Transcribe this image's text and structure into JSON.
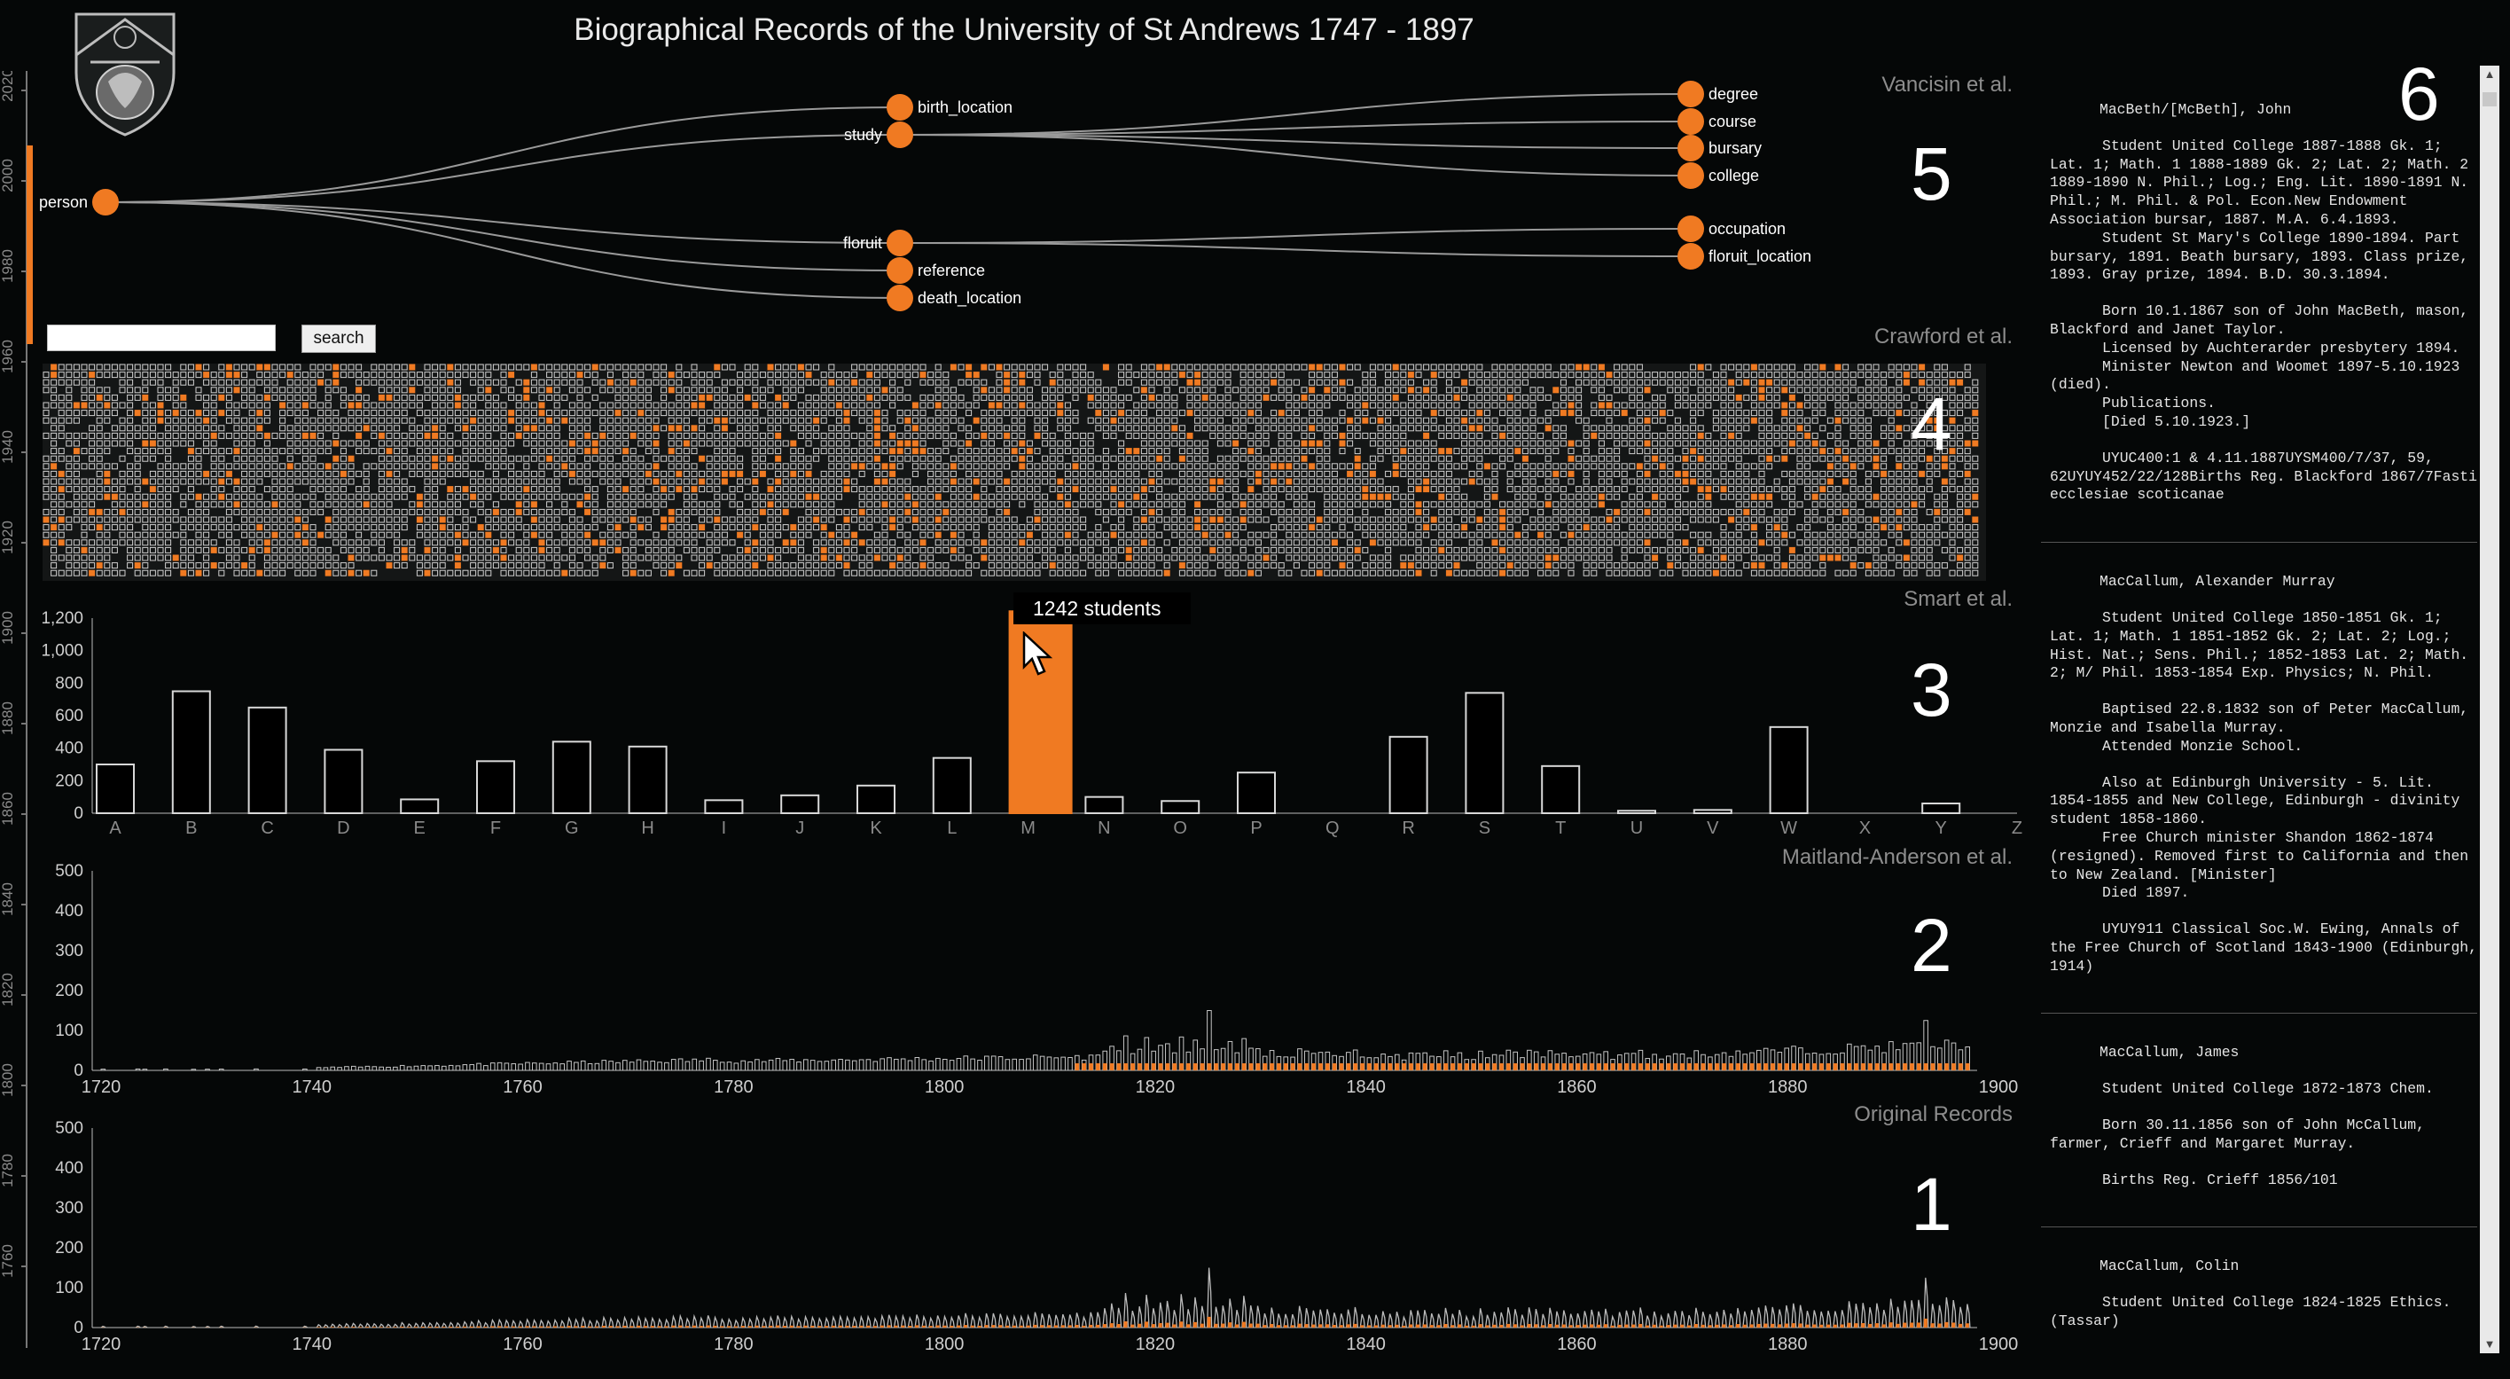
{
  "title": "Biographical Records of the University of St Andrews 1747 - 1897",
  "colors": {
    "accent": "#f07a22",
    "background": "#050707",
    "text": "#e6e6e6",
    "muted": "#8d8d8d"
  },
  "icons": {
    "crest": "university-crest-icon",
    "cursor": "mouse-cursor-icon"
  },
  "timeline": {
    "ticks": [
      "2020",
      "2000",
      "1980",
      "1960",
      "1940",
      "1920",
      "1900",
      "1880",
      "1860",
      "1840",
      "1820",
      "1800",
      "1780",
      "1760"
    ]
  },
  "panels": [
    {
      "number": "5",
      "label": "Vancisin et al."
    },
    {
      "number": "4",
      "label": "Crawford et al."
    },
    {
      "number": "3",
      "label": "Smart et al."
    },
    {
      "number": "2",
      "label": "Maitland-Anderson et al."
    },
    {
      "number": "1",
      "label": "Original Records"
    },
    {
      "number": "6",
      "label": ""
    }
  ],
  "tree": {
    "root": "person",
    "children": [
      {
        "label": "birth_location",
        "children": []
      },
      {
        "label": "study",
        "children": [
          "degree",
          "course",
          "bursary",
          "college"
        ]
      },
      {
        "label": "floruit",
        "children": [
          "occupation",
          "floruit_location"
        ]
      },
      {
        "label": "reference",
        "children": []
      },
      {
        "label": "death_location",
        "children": []
      }
    ]
  },
  "search": {
    "value": "",
    "placeholder": "",
    "button_label": "search"
  },
  "tooltip": {
    "text": "1242 students"
  },
  "chart_data": [
    {
      "type": "bar",
      "name": "alphabet",
      "categories": [
        "A",
        "B",
        "C",
        "D",
        "E",
        "F",
        "G",
        "H",
        "I",
        "J",
        "K",
        "L",
        "M",
        "N",
        "O",
        "P",
        "Q",
        "R",
        "S",
        "T",
        "U",
        "V",
        "W",
        "X",
        "Y",
        "Z"
      ],
      "values": [
        300,
        750,
        650,
        390,
        85,
        320,
        440,
        410,
        80,
        110,
        170,
        340,
        1242,
        100,
        75,
        250,
        0,
        470,
        740,
        290,
        15,
        20,
        530,
        0,
        60,
        0
      ],
      "highlight": "M",
      "ylim": [
        0,
        1200
      ],
      "yticks": [
        "0",
        "200",
        "400",
        "600",
        "800",
        "1,000",
        "1,200"
      ]
    },
    {
      "type": "bar",
      "name": "maitland",
      "xlim": [
        1720,
        1900
      ],
      "ylim": [
        0,
        500
      ],
      "xticks": [
        "1720",
        "1740",
        "1760",
        "1780",
        "1800",
        "1820",
        "1840",
        "1860",
        "1880",
        "1900"
      ],
      "yticks": [
        "0",
        "100",
        "200",
        "300",
        "400",
        "500"
      ]
    },
    {
      "type": "bar",
      "name": "original",
      "xlim": [
        1720,
        1900
      ],
      "ylim": [
        0,
        500
      ],
      "xticks": [
        "1720",
        "1740",
        "1760",
        "1780",
        "1800",
        "1820",
        "1840",
        "1860",
        "1880",
        "1900"
      ],
      "yticks": [
        "0",
        "100",
        "200",
        "300",
        "400",
        "500"
      ]
    }
  ],
  "records": [
    {
      "name": "MacBeth/[McBeth], John",
      "paras": [
        "      Student United College 1887-1888 Gk. 1; Lat. 1; Math. 1 1888-1889 Gk. 2; Lat. 2; Math. 2 1889-1890 N. Phil.; Log.; Eng. Lit. 1890-1891 N. Phil.; M. Phil. & Pol. Econ.New Endowment Association bursar, 1887. M.A. 6.4.1893.\n      Student St Mary's College 1890-1894. Part bursary, 1891. Beath bursary, 1893. Class prize, 1893. Gray prize, 1894. B.D. 30.3.1894.",
        "      Born 10.1.1867 son of John MacBeth, mason, Blackford and Janet Taylor.\n      Licensed by Auchterarder presbytery 1894.\n      Minister Newton and Woomet 1897-5.10.1923 (died).\n      Publications.\n      [Died 5.10.1923.]",
        "      UYUC400:1 & 4.11.1887UYSM400/7/37, 59, 62UYUY452/22/128Births Reg. Blackford 1867/7Fasti ecclesiae scoticanae"
      ]
    },
    {
      "name": "MacCallum, Alexander Murray",
      "paras": [
        "      Student United College 1850-1851 Gk. 1; Lat. 1; Math. 1 1851-1852 Gk. 2; Lat. 2; Log.; Hist. Nat.; Sens. Phil.; 1852-1853 Lat. 2; Math. 2; M/ Phil. 1853-1854 Exp. Physics; N. Phil.",
        "      Baptised 22.8.1832 son of Peter MacCallum, Monzie and Isabella Murray.\n      Attended Monzie School.",
        "      Also at Edinburgh University - 5. Lit. 1854-1855 and New College, Edinburgh - divinity student 1858-1860.\n      Free Church minister Shandon 1862-1874 (resigned). Removed first to California and then to New Zealand. [Minister]\n      Died 1897.",
        "      UYUY911 Classical Soc.W. Ewing, Annals of the Free Church of Scotland 1843-1900 (Edinburgh, 1914)"
      ]
    },
    {
      "name": "MacCallum, James",
      "paras": [
        "      Student United College 1872-1873 Chem.",
        "      Born 30.11.1856 son of John McCallum, farmer, Crieff and Margaret Murray.",
        "      Births Reg. Crieff 1856/101"
      ]
    },
    {
      "name": "MacCallum, Colin",
      "paras": [
        "      Student United College 1824-1825 Ethics. (Tassar)"
      ]
    }
  ]
}
